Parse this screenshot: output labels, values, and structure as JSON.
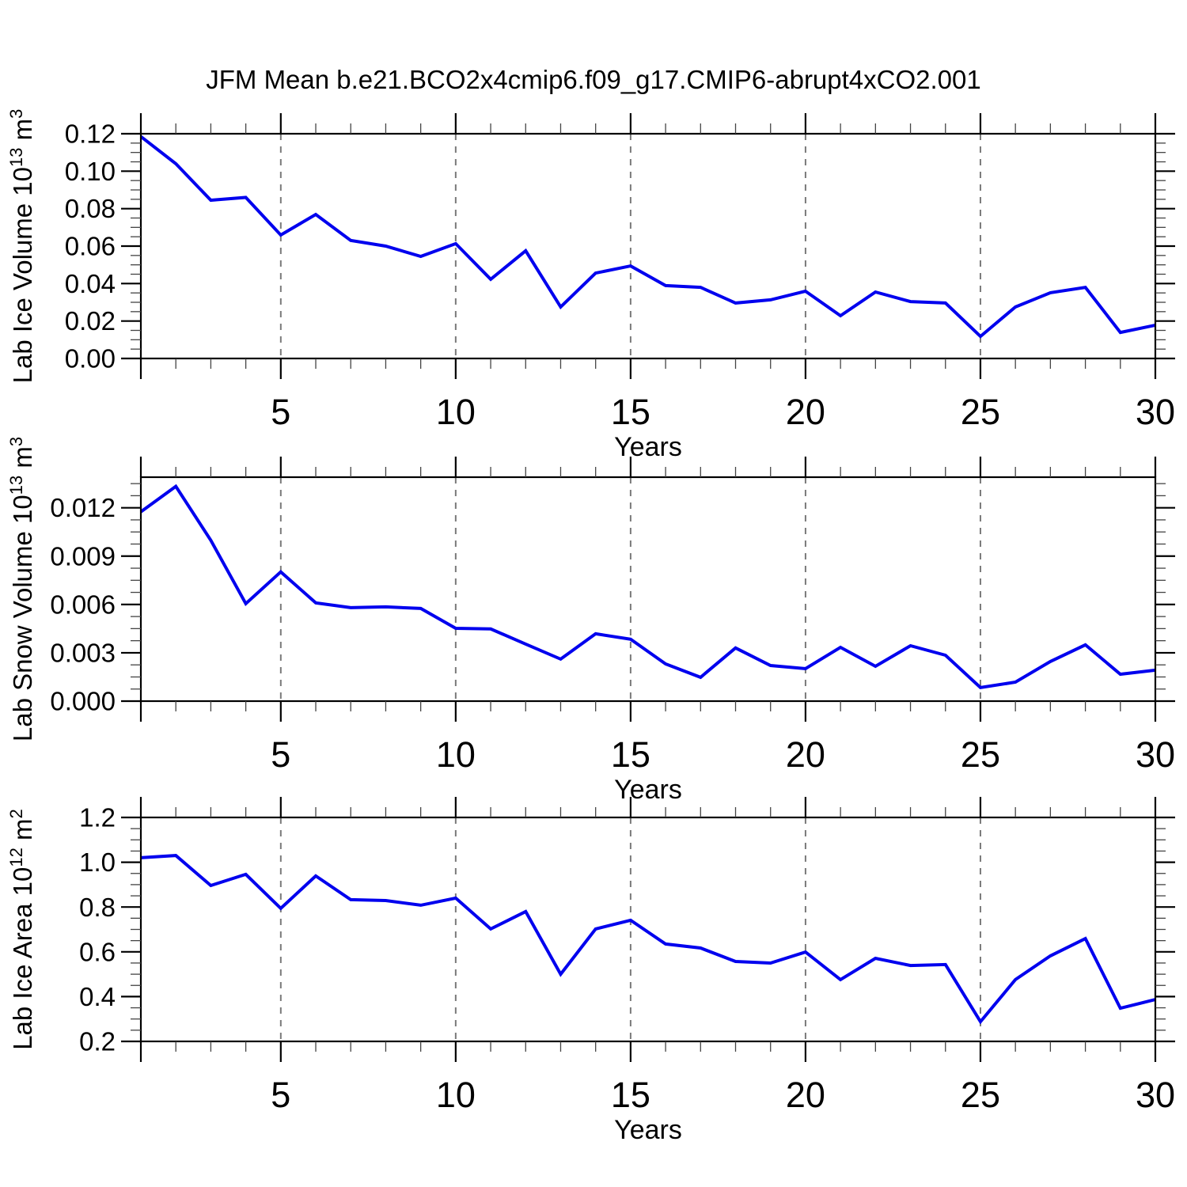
{
  "title": "JFM Mean b.e21.BCO2x4cmip6.f09_g17.CMIP6-abrupt4xCO2.001",
  "colors": {
    "line": "#0000ee",
    "grid": "#7a7a7a",
    "axis": "#000000",
    "background": "#ffffff"
  },
  "x_axis": {
    "label": "Years",
    "range": [
      1,
      30
    ],
    "major_ticks": [
      5,
      10,
      15,
      20,
      25,
      30
    ],
    "tick_labels": [
      "5",
      "10",
      "15",
      "20",
      "25",
      "30"
    ],
    "minor_step": 1,
    "gridline_years": [
      5,
      10,
      15,
      20,
      25
    ]
  },
  "chart_data": [
    {
      "type": "line",
      "id": "lab-ice-volume",
      "ylabel_text": "Lab Ice Volume 10^13 m^3",
      "ylabel_parts": [
        {
          "t": "Lab Ice Volume 10"
        },
        {
          "t": "13",
          "sup": true
        },
        {
          "t": " m"
        },
        {
          "t": "3",
          "sup": true
        }
      ],
      "xlabel": "Years",
      "x": [
        1,
        2,
        3,
        4,
        5,
        6,
        7,
        8,
        9,
        10,
        11,
        12,
        13,
        14,
        15,
        16,
        17,
        18,
        19,
        20,
        21,
        22,
        23,
        24,
        25,
        26,
        27,
        28,
        29,
        30
      ],
      "values": [
        0.1185,
        0.104,
        0.0845,
        0.086,
        0.0659,
        0.0769,
        0.063,
        0.06,
        0.0545,
        0.0613,
        0.0423,
        0.0575,
        0.0275,
        0.0456,
        0.0494,
        0.0389,
        0.038,
        0.0296,
        0.0313,
        0.0359,
        0.0228,
        0.0355,
        0.0304,
        0.0296,
        0.0118,
        0.0275,
        0.0351,
        0.038,
        0.0139,
        0.0178
      ],
      "ylim": [
        0,
        0.12
      ],
      "yticks": [
        0,
        0.02,
        0.04,
        0.06,
        0.08,
        0.1,
        0.12
      ],
      "ytick_labels": [
        "0.00",
        "0.02",
        "0.04",
        "0.06",
        "0.08",
        "0.10",
        "0.12"
      ],
      "yminor_step": 0.005
    },
    {
      "type": "line",
      "id": "lab-snow-volume",
      "ylabel_text": "Lab Snow Volume 10^13 m^3",
      "ylabel_parts": [
        {
          "t": "Lab Snow Volume 10"
        },
        {
          "t": "13",
          "sup": true
        },
        {
          "t": " m"
        },
        {
          "t": "3",
          "sup": true
        }
      ],
      "xlabel": "Years",
      "x": [
        1,
        2,
        3,
        4,
        5,
        6,
        7,
        8,
        9,
        10,
        11,
        12,
        13,
        14,
        15,
        16,
        17,
        18,
        19,
        20,
        21,
        22,
        23,
        24,
        25,
        26,
        27,
        28,
        29,
        30
      ],
      "values": [
        0.01175,
        0.01333,
        0.00998,
        0.00605,
        0.00802,
        0.0061,
        0.0058,
        0.00585,
        0.00575,
        0.00452,
        0.00448,
        0.00354,
        0.00261,
        0.00418,
        0.00384,
        0.00231,
        0.00148,
        0.0033,
        0.00221,
        0.00202,
        0.00334,
        0.00216,
        0.00344,
        0.00285,
        0.00084,
        0.00118,
        0.00246,
        0.00349,
        0.00167,
        0.00192
      ],
      "ylim": [
        0,
        0.0139
      ],
      "yticks": [
        0,
        0.003,
        0.006,
        0.009,
        0.012
      ],
      "ytick_labels": [
        "0.000",
        "0.003",
        "0.006",
        "0.009",
        "0.012"
      ],
      "yminor_step": 0.00075
    },
    {
      "type": "line",
      "id": "lab-ice-area",
      "ylabel_text": "Lab Ice Area 10^12 m^2",
      "ylabel_parts": [
        {
          "t": "Lab Ice Area 10"
        },
        {
          "t": "12",
          "sup": true
        },
        {
          "t": " m"
        },
        {
          "t": "2",
          "sup": true
        }
      ],
      "xlabel": "Years",
      "x": [
        1,
        2,
        3,
        4,
        5,
        6,
        7,
        8,
        9,
        10,
        11,
        12,
        13,
        14,
        15,
        16,
        17,
        18,
        19,
        20,
        21,
        22,
        23,
        24,
        25,
        26,
        27,
        28,
        29,
        30
      ],
      "values": [
        1.02,
        1.03,
        0.896,
        0.946,
        0.794,
        0.939,
        0.833,
        0.829,
        0.808,
        0.84,
        0.702,
        0.78,
        0.5,
        0.702,
        0.741,
        0.635,
        0.617,
        0.557,
        0.55,
        0.599,
        0.476,
        0.571,
        0.539,
        0.543,
        0.288,
        0.476,
        0.582,
        0.659,
        0.348,
        0.387
      ],
      "ylim": [
        0.2,
        1.2
      ],
      "yticks": [
        0.2,
        0.4,
        0.6,
        0.8,
        1.0,
        1.2
      ],
      "ytick_labels": [
        "0.2",
        "0.4",
        "0.6",
        "0.8",
        "1.0",
        "1.2"
      ],
      "yminor_step": 0.05
    }
  ]
}
